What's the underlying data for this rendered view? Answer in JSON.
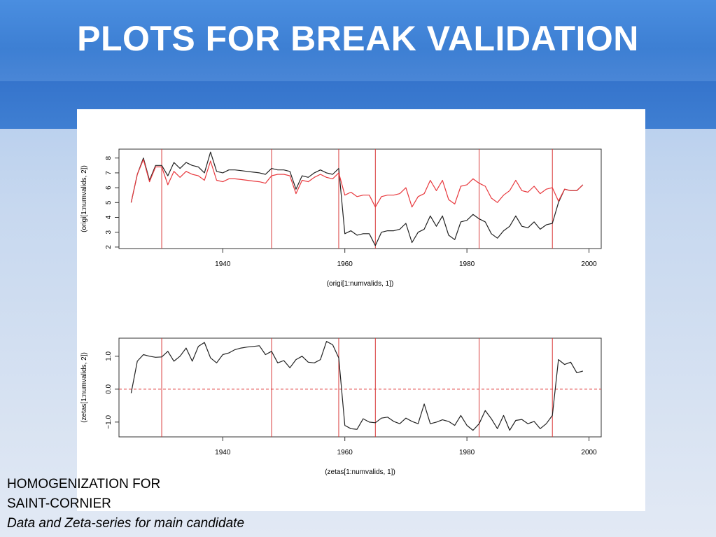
{
  "slide": {
    "title": "PLOTS FOR BREAK VALIDATION",
    "caption_lines": [
      "HOMOGENIZATION FOR",
      "SAINT-CORNIER",
      "Data and Zeta-series for main candidate"
    ]
  },
  "colors": {
    "black_series": "#222222",
    "red_series": "#e8383d",
    "break_line": "#d93a3a",
    "zero_line": "#e03c3c"
  },
  "chart_data": [
    {
      "type": "line",
      "title": "",
      "xlabel": "(origi[1:numvalids, 1])",
      "ylabel": "(origi[1:numvalids, 2])",
      "xlim": [
        1923,
        2002
      ],
      "ylim": [
        1.9,
        8.6
      ],
      "xticks": [
        1940,
        1960,
        1980,
        2000
      ],
      "yticks": [
        2,
        3,
        4,
        5,
        6,
        7,
        8
      ],
      "grid": false,
      "breaks": [
        1930,
        1948,
        1959,
        1965,
        1982,
        1994
      ],
      "x": [
        1925,
        1926,
        1927,
        1928,
        1929,
        1930,
        1931,
        1932,
        1933,
        1934,
        1935,
        1936,
        1937,
        1938,
        1939,
        1940,
        1941,
        1942,
        1943,
        1944,
        1945,
        1946,
        1947,
        1948,
        1949,
        1950,
        1951,
        1952,
        1953,
        1954,
        1955,
        1956,
        1957,
        1958,
        1959,
        1960,
        1961,
        1962,
        1963,
        1964,
        1965,
        1966,
        1967,
        1968,
        1969,
        1970,
        1971,
        1972,
        1973,
        1974,
        1975,
        1976,
        1977,
        1978,
        1979,
        1980,
        1981,
        1982,
        1983,
        1984,
        1985,
        1986,
        1987,
        1988,
        1989,
        1990,
        1991,
        1992,
        1993,
        1994,
        1995,
        1996,
        1997,
        1998,
        1999
      ],
      "series": [
        {
          "color_key": "black_series",
          "values": [
            5.0,
            6.9,
            8.0,
            6.5,
            7.5,
            7.5,
            6.8,
            7.7,
            7.3,
            7.7,
            7.5,
            7.4,
            7.0,
            8.4,
            7.1,
            7.0,
            7.2,
            7.2,
            7.15,
            7.1,
            7.05,
            7.0,
            6.9,
            7.3,
            7.2,
            7.2,
            7.1,
            5.9,
            6.8,
            6.7,
            7.0,
            7.2,
            7.0,
            6.9,
            7.3,
            2.9,
            3.1,
            2.8,
            2.9,
            2.9,
            2.1,
            3.0,
            3.1,
            3.1,
            3.2,
            3.6,
            2.3,
            3.0,
            3.2,
            4.1,
            3.4,
            4.1,
            2.8,
            2.5,
            3.7,
            3.8,
            4.2,
            3.9,
            3.7,
            2.9,
            2.6,
            3.1,
            3.4,
            4.1,
            3.4,
            3.3,
            3.7,
            3.2,
            3.5,
            3.6,
            5.0,
            5.9,
            5.8,
            5.8,
            6.2
          ]
        },
        {
          "color_key": "red_series",
          "values": [
            5.0,
            6.9,
            7.9,
            6.4,
            7.4,
            7.4,
            6.2,
            7.1,
            6.7,
            7.1,
            6.9,
            6.8,
            6.5,
            7.8,
            6.5,
            6.4,
            6.6,
            6.6,
            6.55,
            6.5,
            6.45,
            6.4,
            6.3,
            6.8,
            6.9,
            6.9,
            6.8,
            5.6,
            6.5,
            6.4,
            6.7,
            6.9,
            6.7,
            6.6,
            7.0,
            5.5,
            5.7,
            5.4,
            5.5,
            5.5,
            4.7,
            5.4,
            5.5,
            5.5,
            5.6,
            6.0,
            4.7,
            5.4,
            5.6,
            6.5,
            5.8,
            6.5,
            5.2,
            4.9,
            6.1,
            6.2,
            6.6,
            6.3,
            6.1,
            5.3,
            5.0,
            5.5,
            5.8,
            6.5,
            5.8,
            5.7,
            6.1,
            5.6,
            5.9,
            6.0,
            5.1,
            5.9,
            5.8,
            5.8,
            6.2
          ]
        }
      ]
    },
    {
      "type": "line",
      "title": "",
      "xlabel": "(zetas[1:numvalids, 1])",
      "ylabel": "(zetas[1:numvalids, 2])",
      "xlim": [
        1923,
        2002
      ],
      "ylim": [
        -1.45,
        1.55
      ],
      "xticks": [
        1940,
        1960,
        1980,
        2000
      ],
      "yticks": [
        -1.0,
        0.0,
        1.0
      ],
      "ytick_labels": [
        "−1.0",
        "0.0",
        "1.0"
      ],
      "grid": false,
      "breaks": [
        1930,
        1948,
        1959,
        1965,
        1982,
        1994
      ],
      "reference_line": 0.0,
      "x": [
        1925,
        1926,
        1927,
        1928,
        1929,
        1930,
        1931,
        1932,
        1933,
        1934,
        1935,
        1936,
        1937,
        1938,
        1939,
        1940,
        1941,
        1942,
        1943,
        1944,
        1945,
        1946,
        1947,
        1948,
        1949,
        1950,
        1951,
        1952,
        1953,
        1954,
        1955,
        1956,
        1957,
        1958,
        1959,
        1960,
        1961,
        1962,
        1963,
        1964,
        1965,
        1966,
        1967,
        1968,
        1969,
        1970,
        1971,
        1972,
        1973,
        1974,
        1975,
        1976,
        1977,
        1978,
        1979,
        1980,
        1981,
        1982,
        1983,
        1984,
        1985,
        1986,
        1987,
        1988,
        1989,
        1990,
        1991,
        1992,
        1993,
        1994,
        1995,
        1996,
        1997,
        1998,
        1999
      ],
      "series": [
        {
          "color_key": "black_series",
          "values": [
            -0.12,
            0.85,
            1.05,
            1.0,
            0.97,
            0.98,
            1.15,
            0.85,
            1.0,
            1.25,
            0.85,
            1.3,
            1.42,
            0.95,
            0.8,
            1.05,
            1.1,
            1.2,
            1.25,
            1.28,
            1.3,
            1.32,
            1.05,
            1.15,
            0.8,
            0.87,
            0.65,
            0.9,
            1.0,
            0.82,
            0.8,
            0.9,
            1.45,
            1.35,
            0.95,
            -1.1,
            -1.2,
            -1.22,
            -0.9,
            -1.0,
            -1.02,
            -0.88,
            -0.85,
            -0.98,
            -1.05,
            -0.88,
            -0.98,
            -1.05,
            -0.45,
            -1.05,
            -1.0,
            -0.93,
            -0.98,
            -1.1,
            -0.8,
            -1.1,
            -1.25,
            -1.05,
            -0.65,
            -0.9,
            -1.2,
            -0.8,
            -1.25,
            -0.95,
            -0.92,
            -1.05,
            -0.98,
            -1.2,
            -1.05,
            -0.8,
            0.9,
            0.75,
            0.82,
            0.5,
            0.55
          ]
        }
      ]
    }
  ]
}
